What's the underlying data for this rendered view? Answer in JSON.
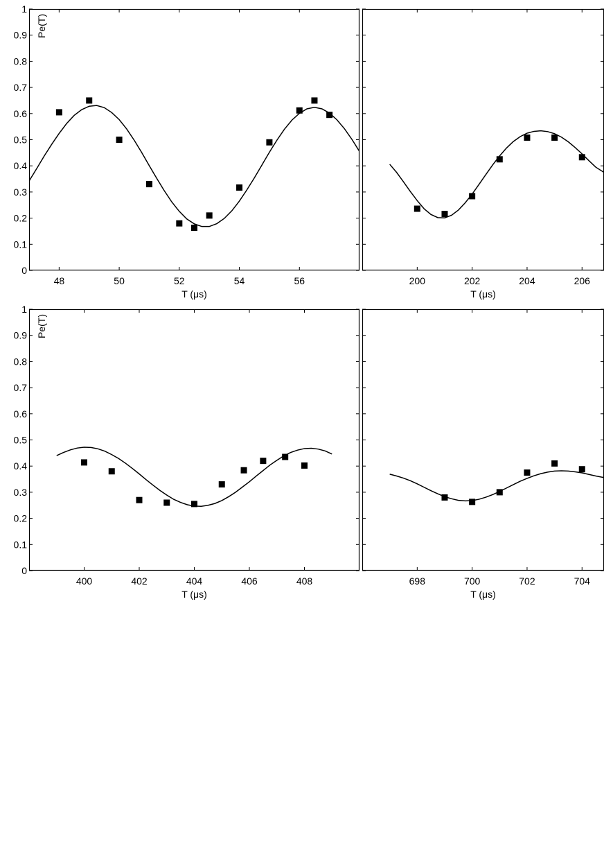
{
  "chart_data": [
    {
      "type": "scatter",
      "xlabel": "T (μs)",
      "ylabel": "Pe(T)",
      "xlim": [
        47,
        58
      ],
      "ylim": [
        0,
        1
      ],
      "xticks": [
        48,
        50,
        52,
        54,
        56
      ],
      "yticks": [
        0,
        0.1,
        0.2,
        0.3,
        0.4,
        0.5,
        0.6,
        0.7,
        0.8,
        0.9,
        1
      ],
      "ytick_labels": [
        "0",
        "0.1",
        "0.2",
        "0.3",
        "0.4",
        "0.5",
        "0.6",
        "0.7",
        "0.8",
        "0.9",
        "1"
      ],
      "grid": false,
      "series": [
        {
          "kind": "points",
          "x": [
            48,
            49,
            50,
            51,
            52,
            52.5,
            53,
            54,
            55,
            56,
            56.5,
            57
          ],
          "y": [
            0.605,
            0.65,
            0.5,
            0.33,
            0.18,
            0.163,
            0.21,
            0.317,
            0.49,
            0.612,
            0.65,
            0.595
          ]
        },
        {
          "kind": "fit",
          "x": [
            47,
            47.25,
            47.5,
            47.75,
            48,
            48.25,
            48.5,
            48.75,
            49,
            49.25,
            49.5,
            49.75,
            50,
            50.25,
            50.5,
            50.75,
            51,
            51.25,
            51.5,
            51.75,
            52,
            52.25,
            52.5,
            52.75,
            53,
            53.25,
            53.5,
            53.75,
            54,
            54.25,
            54.5,
            54.75,
            55,
            55.25,
            55.5,
            55.75,
            56,
            56.25,
            56.5,
            56.75,
            57,
            57.25,
            57.5,
            57.75,
            58
          ],
          "y": [
            0.342,
            0.389,
            0.437,
            0.482,
            0.524,
            0.562,
            0.593,
            0.615,
            0.628,
            0.631,
            0.623,
            0.604,
            0.577,
            0.541,
            0.498,
            0.451,
            0.401,
            0.352,
            0.305,
            0.262,
            0.226,
            0.197,
            0.178,
            0.168,
            0.168,
            0.179,
            0.199,
            0.228,
            0.265,
            0.308,
            0.354,
            0.403,
            0.452,
            0.498,
            0.54,
            0.575,
            0.601,
            0.618,
            0.624,
            0.618,
            0.602,
            0.576,
            0.542,
            0.501,
            0.455
          ]
        }
      ]
    },
    {
      "type": "scatter",
      "xlabel": "T (μs)",
      "ylabel": "",
      "xlim": [
        198,
        206.8
      ],
      "ylim": [
        0,
        1
      ],
      "xticks": [
        200,
        202,
        204,
        206
      ],
      "yticks": [
        0,
        0.1,
        0.2,
        0.3,
        0.4,
        0.5,
        0.6,
        0.7,
        0.8,
        0.9,
        1
      ],
      "ytick_labels": [],
      "grid": false,
      "series": [
        {
          "kind": "points",
          "x": [
            200,
            201,
            202,
            203,
            204,
            205,
            206
          ],
          "y": [
            0.236,
            0.216,
            0.284,
            0.425,
            0.508,
            0.508,
            0.433
          ]
        },
        {
          "kind": "fit",
          "x": [
            199,
            199.25,
            199.5,
            199.75,
            200,
            200.25,
            200.5,
            200.75,
            201,
            201.25,
            201.5,
            201.75,
            202,
            202.25,
            202.5,
            202.75,
            203,
            203.25,
            203.5,
            203.75,
            204,
            204.25,
            204.5,
            204.75,
            205,
            205.25,
            205.5,
            205.75,
            206,
            206.25,
            206.5,
            206.8
          ],
          "y": [
            0.406,
            0.375,
            0.339,
            0.302,
            0.267,
            0.236,
            0.214,
            0.202,
            0.201,
            0.211,
            0.231,
            0.259,
            0.292,
            0.329,
            0.367,
            0.404,
            0.438,
            0.468,
            0.493,
            0.512,
            0.525,
            0.532,
            0.534,
            0.531,
            0.523,
            0.51,
            0.492,
            0.47,
            0.446,
            0.42,
            0.395,
            0.375
          ]
        }
      ]
    },
    {
      "type": "scatter",
      "xlabel": "T (μs)",
      "ylabel": "Pe(T)",
      "xlim": [
        398,
        410
      ],
      "ylim": [
        0,
        1
      ],
      "xticks": [
        400,
        402,
        404,
        406,
        408
      ],
      "yticks": [
        0,
        0.1,
        0.2,
        0.3,
        0.4,
        0.5,
        0.6,
        0.7,
        0.8,
        0.9,
        1
      ],
      "ytick_labels": [
        "0",
        "0.1",
        "0.2",
        "0.3",
        "0.4",
        "0.5",
        "0.6",
        "0.7",
        "0.8",
        "0.9",
        "1"
      ],
      "grid": false,
      "series": [
        {
          "kind": "points",
          "x": [
            400,
            401,
            402,
            403,
            404,
            405,
            405.8,
            406.5,
            407.3,
            408
          ],
          "y": [
            0.414,
            0.38,
            0.27,
            0.26,
            0.255,
            0.33,
            0.384,
            0.42,
            0.435,
            0.402
          ]
        },
        {
          "kind": "fit",
          "x": [
            399,
            399.25,
            399.5,
            399.75,
            400,
            400.25,
            400.5,
            400.75,
            401,
            401.25,
            401.5,
            401.75,
            402,
            402.25,
            402.5,
            402.75,
            403,
            403.25,
            403.5,
            403.75,
            404,
            404.25,
            404.5,
            404.75,
            405,
            405.25,
            405.5,
            405.75,
            406,
            406.25,
            406.5,
            406.75,
            407,
            407.25,
            407.5,
            407.75,
            408,
            408.25,
            408.5,
            408.75,
            409
          ],
          "y": [
            0.44,
            0.452,
            0.462,
            0.469,
            0.472,
            0.471,
            0.466,
            0.457,
            0.444,
            0.429,
            0.411,
            0.391,
            0.37,
            0.348,
            0.327,
            0.307,
            0.289,
            0.273,
            0.261,
            0.252,
            0.247,
            0.246,
            0.25,
            0.257,
            0.268,
            0.283,
            0.3,
            0.32,
            0.34,
            0.362,
            0.383,
            0.404,
            0.422,
            0.439,
            0.452,
            0.461,
            0.467,
            0.468,
            0.465,
            0.458,
            0.446
          ]
        }
      ]
    },
    {
      "type": "scatter",
      "xlabel": "T (μs)",
      "ylabel": "",
      "xlim": [
        696,
        704.8
      ],
      "ylim": [
        0,
        1
      ],
      "xticks": [
        698,
        700,
        702,
        704
      ],
      "yticks": [
        0,
        0.1,
        0.2,
        0.3,
        0.4,
        0.5,
        0.6,
        0.7,
        0.8,
        0.9,
        1
      ],
      "ytick_labels": [],
      "grid": false,
      "series": [
        {
          "kind": "points",
          "x": [
            699,
            700,
            701,
            702,
            703,
            704
          ],
          "y": [
            0.28,
            0.263,
            0.3,
            0.375,
            0.41,
            0.388
          ]
        },
        {
          "kind": "fit",
          "x": [
            697,
            697.25,
            697.5,
            697.75,
            698,
            698.25,
            698.5,
            698.75,
            699,
            699.25,
            699.5,
            699.75,
            700,
            700.25,
            700.5,
            700.75,
            701,
            701.25,
            701.5,
            701.75,
            702,
            702.25,
            702.5,
            702.75,
            703,
            703.25,
            703.5,
            703.75,
            704,
            704.25,
            704.5,
            704.8
          ],
          "y": [
            0.369,
            0.362,
            0.354,
            0.344,
            0.332,
            0.319,
            0.306,
            0.294,
            0.283,
            0.275,
            0.269,
            0.267,
            0.268,
            0.273,
            0.281,
            0.291,
            0.303,
            0.316,
            0.329,
            0.342,
            0.353,
            0.363,
            0.371,
            0.377,
            0.381,
            0.382,
            0.381,
            0.378,
            0.374,
            0.368,
            0.362,
            0.356
          ]
        }
      ]
    }
  ]
}
